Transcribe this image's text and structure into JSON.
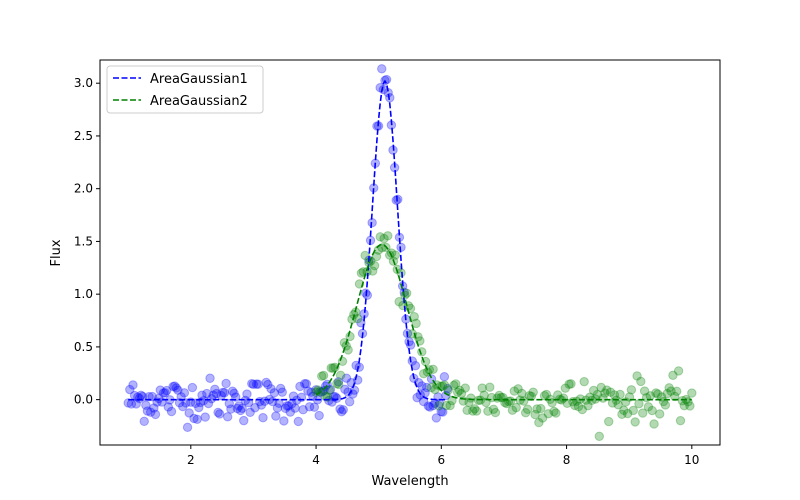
{
  "chart_data": {
    "type": "scatter",
    "title": "",
    "xlabel": "Wavelength",
    "ylabel": "Flux",
    "xlim": [
      0.55,
      10.45
    ],
    "ylim": [
      -0.43,
      3.22
    ],
    "xticks": [
      2,
      4,
      6,
      8,
      10
    ],
    "xtick_labels": [
      "2",
      "4",
      "6",
      "8",
      "10"
    ],
    "yticks": [
      0.0,
      0.5,
      1.0,
      1.5,
      2.0,
      2.5,
      3.0
    ],
    "ytick_labels": [
      "0.0",
      "0.5",
      "1.0",
      "1.5",
      "2.0",
      "2.5",
      "3.0"
    ],
    "grid": false,
    "legend_position": "top-left",
    "series": [
      {
        "name": "AreaGaussian1",
        "color": "#0000ff",
        "line_style": "dashed",
        "model": {
          "amplitude": 3.02,
          "center": 5.1,
          "sigma": 0.2
        },
        "x_range": [
          1.0,
          6.1
        ],
        "noise_sigma": 0.1
      },
      {
        "name": "AreaGaussian2",
        "color": "#008000",
        "line_style": "dashed",
        "model": {
          "amplitude": 1.47,
          "center": 5.05,
          "sigma": 0.4
        },
        "x_range": [
          4.0,
          10.0
        ],
        "noise_sigma": 0.1
      }
    ]
  }
}
